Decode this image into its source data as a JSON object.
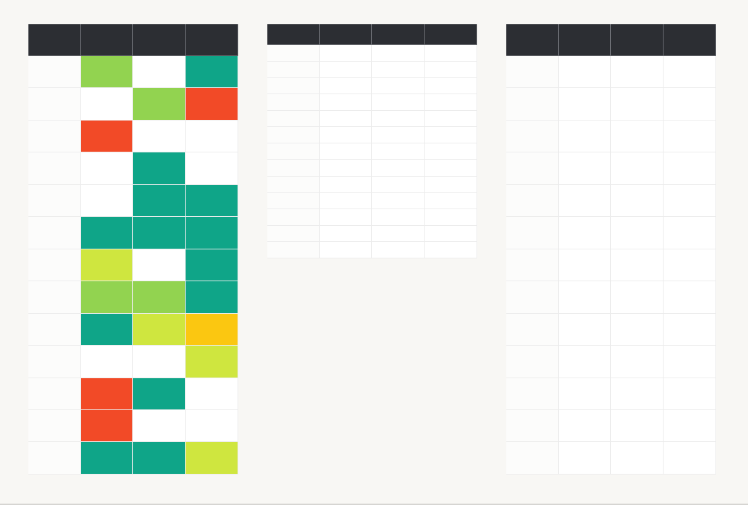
{
  "palette": {
    "empty": "#ffffff",
    "teal": "#0fa588",
    "green": "#92d350",
    "lime": "#cfe63f",
    "amber": "#fbc711",
    "red": "#f24a27",
    "header": "#2c2e33"
  },
  "grids": {
    "left": {
      "columns": 4,
      "header": [
        "",
        "",
        "",
        ""
      ],
      "rows": [
        [
          "empty",
          "green",
          "empty",
          "teal"
        ],
        [
          "empty",
          "empty",
          "green",
          "red"
        ],
        [
          "empty",
          "red",
          "empty",
          "empty"
        ],
        [
          "empty",
          "empty",
          "teal",
          "empty"
        ],
        [
          "empty",
          "empty",
          "teal",
          "teal"
        ],
        [
          "empty",
          "teal",
          "teal",
          "teal"
        ],
        [
          "empty",
          "lime",
          "empty",
          "teal"
        ],
        [
          "empty",
          "green",
          "green",
          "teal"
        ],
        [
          "empty",
          "teal",
          "lime",
          "amber"
        ],
        [
          "empty",
          "empty",
          "empty",
          "lime"
        ],
        [
          "empty",
          "red",
          "teal",
          "empty"
        ],
        [
          "empty",
          "red",
          "empty",
          "empty"
        ],
        [
          "empty",
          "teal",
          "teal",
          "lime"
        ]
      ]
    },
    "middle": {
      "columns": 4,
      "header": [
        "",
        "",
        "",
        ""
      ],
      "rows": [
        [
          "empty",
          "empty",
          "empty",
          "empty"
        ],
        [
          "empty",
          "empty",
          "empty",
          "empty"
        ],
        [
          "empty",
          "empty",
          "empty",
          "empty"
        ],
        [
          "empty",
          "empty",
          "empty",
          "empty"
        ],
        [
          "empty",
          "empty",
          "empty",
          "empty"
        ],
        [
          "empty",
          "empty",
          "empty",
          "empty"
        ],
        [
          "empty",
          "empty",
          "empty",
          "empty"
        ],
        [
          "empty",
          "empty",
          "empty",
          "empty"
        ],
        [
          "empty",
          "empty",
          "empty",
          "empty"
        ],
        [
          "empty",
          "empty",
          "empty",
          "empty"
        ],
        [
          "empty",
          "empty",
          "empty",
          "empty"
        ],
        [
          "empty",
          "empty",
          "empty",
          "empty"
        ],
        [
          "empty",
          "empty",
          "empty",
          "empty"
        ]
      ]
    },
    "right": {
      "columns": 4,
      "header": [
        "",
        "",
        "",
        ""
      ],
      "rows": [
        [
          "empty",
          "empty",
          "empty",
          "empty"
        ],
        [
          "empty",
          "empty",
          "empty",
          "empty"
        ],
        [
          "empty",
          "empty",
          "empty",
          "empty"
        ],
        [
          "empty",
          "empty",
          "empty",
          "empty"
        ],
        [
          "empty",
          "empty",
          "empty",
          "empty"
        ],
        [
          "empty",
          "empty",
          "empty",
          "empty"
        ],
        [
          "empty",
          "empty",
          "empty",
          "empty"
        ],
        [
          "empty",
          "empty",
          "empty",
          "empty"
        ],
        [
          "empty",
          "empty",
          "empty",
          "empty"
        ],
        [
          "empty",
          "empty",
          "empty",
          "empty"
        ],
        [
          "empty",
          "empty",
          "empty",
          "empty"
        ],
        [
          "empty",
          "empty",
          "empty",
          "empty"
        ],
        [
          "empty",
          "empty",
          "empty",
          "empty"
        ]
      ]
    }
  }
}
